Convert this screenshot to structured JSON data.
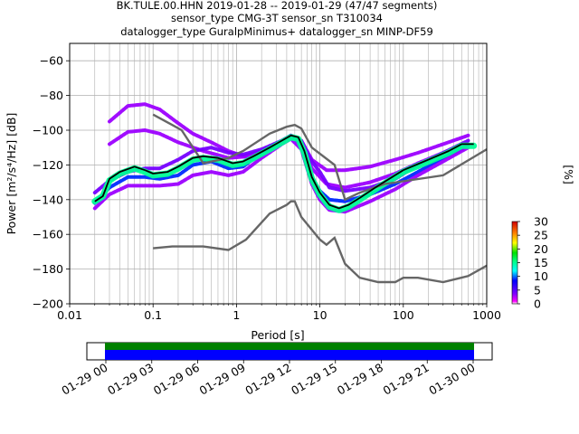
{
  "chart_data": {
    "type": "heatmap",
    "title_lines": [
      "BK.TULE.00.HHN   2019-01-28 -- 2019-01-29  (47/47 segments)",
      "sensor_type CMG-3T sensor_sn T310034",
      "datalogger_type GuralpMinimus+ datalogger_sn MINP-DF59"
    ],
    "xlabel": "Period [s]",
    "ylabel": "Power [m²/s⁴/Hz] [dB]",
    "x_scale": "log",
    "xlim": [
      0.01,
      1000
    ],
    "ylim": [
      -200,
      -50
    ],
    "x_ticks": [
      {
        "value": 0.01,
        "label": "0.01"
      },
      {
        "value": 0.1,
        "label": "0.1"
      },
      {
        "value": 1,
        "label": "1"
      },
      {
        "value": 10,
        "label": "10"
      },
      {
        "value": 100,
        "label": "100"
      },
      {
        "value": 1000,
        "label": "1000"
      }
    ],
    "y_ticks": [
      {
        "value": -60,
        "label": "−60"
      },
      {
        "value": -80,
        "label": "−80"
      },
      {
        "value": -100,
        "label": "−100"
      },
      {
        "value": -120,
        "label": "−120"
      },
      {
        "value": -140,
        "label": "−140"
      },
      {
        "value": -160,
        "label": "−160"
      },
      {
        "value": -180,
        "label": "−180"
      },
      {
        "value": -200,
        "label": "−200"
      }
    ],
    "grid": true,
    "colorbar": {
      "label": "[%]",
      "range": [
        0,
        30
      ],
      "ticks": [
        {
          "value": 0,
          "label": "0"
        },
        {
          "value": 5,
          "label": "5"
        },
        {
          "value": 10,
          "label": "10"
        },
        {
          "value": 15,
          "label": "15"
        },
        {
          "value": 20,
          "label": "20"
        },
        {
          "value": 25,
          "label": "25"
        },
        {
          "value": 30,
          "label": "30"
        }
      ]
    },
    "noise_model_high": [
      [
        0.1,
        -91
      ],
      [
        0.17,
        -97
      ],
      [
        0.22,
        -100
      ],
      [
        0.4,
        -119
      ],
      [
        0.8,
        -116
      ],
      [
        1.2,
        -112
      ],
      [
        2.5,
        -102
      ],
      [
        4,
        -98
      ],
      [
        5,
        -97
      ],
      [
        6,
        -99
      ],
      [
        8,
        -110
      ],
      [
        15,
        -120
      ],
      [
        20,
        -140
      ],
      [
        30,
        -136
      ],
      [
        60,
        -131
      ],
      [
        300,
        -126
      ],
      [
        1000,
        -111
      ]
    ],
    "noise_model_low": [
      [
        0.1,
        -168
      ],
      [
        0.17,
        -167
      ],
      [
        0.4,
        -167
      ],
      [
        0.8,
        -169
      ],
      [
        1.3,
        -163
      ],
      [
        2.5,
        -148
      ],
      [
        4,
        -143
      ],
      [
        4.5,
        -141
      ],
      [
        5,
        -141
      ],
      [
        6,
        -150
      ],
      [
        10,
        -163
      ],
      [
        12,
        -166
      ],
      [
        15,
        -162
      ],
      [
        20,
        -177
      ],
      [
        30,
        -185
      ],
      [
        50,
        -187.5
      ],
      [
        80,
        -187.5
      ],
      [
        100,
        -185
      ],
      [
        150,
        -185
      ],
      [
        300,
        -187.5
      ],
      [
        600,
        -184
      ],
      [
        1000,
        -178
      ]
    ],
    "mean_curve": [
      [
        0.02,
        -141
      ],
      [
        0.025,
        -138
      ],
      [
        0.03,
        -128
      ],
      [
        0.04,
        -124
      ],
      [
        0.06,
        -121
      ],
      [
        0.08,
        -123
      ],
      [
        0.1,
        -125
      ],
      [
        0.15,
        -124
      ],
      [
        0.2,
        -121
      ],
      [
        0.3,
        -116
      ],
      [
        0.4,
        -115
      ],
      [
        0.6,
        -116
      ],
      [
        0.9,
        -119
      ],
      [
        1.2,
        -118
      ],
      [
        1.6,
        -115
      ],
      [
        2.5,
        -110
      ],
      [
        3.5,
        -106
      ],
      [
        4.5,
        -103
      ],
      [
        5.5,
        -104
      ],
      [
        6.5,
        -112
      ],
      [
        8,
        -127
      ],
      [
        10,
        -136
      ],
      [
        13,
        -143
      ],
      [
        17,
        -145
      ],
      [
        22,
        -143
      ],
      [
        30,
        -139
      ],
      [
        50,
        -132
      ],
      [
        100,
        -123
      ],
      [
        200,
        -117
      ],
      [
        350,
        -112
      ],
      [
        500,
        -108
      ],
      [
        700,
        -108
      ]
    ],
    "density_bands": [
      {
        "percent": 3,
        "points": [
          [
            0.03,
            -95
          ],
          [
            0.05,
            -86
          ],
          [
            0.08,
            -85
          ],
          [
            0.12,
            -88
          ],
          [
            0.2,
            -96
          ],
          [
            0.3,
            -102
          ],
          [
            0.5,
            -107
          ],
          [
            0.8,
            -112
          ],
          [
            1.2,
            -115
          ],
          [
            2,
            -112
          ],
          [
            3.5,
            -106
          ],
          [
            4.5,
            -103
          ],
          [
            6,
            -106
          ],
          [
            8,
            -117
          ],
          [
            12,
            -123
          ],
          [
            20,
            -123
          ],
          [
            40,
            -121
          ],
          [
            80,
            -117
          ],
          [
            150,
            -113
          ],
          [
            300,
            -108
          ],
          [
            600,
            -103
          ]
        ]
      },
      {
        "percent": 3,
        "points": [
          [
            0.03,
            -108
          ],
          [
            0.05,
            -101
          ],
          [
            0.08,
            -100
          ],
          [
            0.12,
            -102
          ],
          [
            0.2,
            -107
          ],
          [
            0.4,
            -112
          ],
          [
            0.8,
            -116
          ],
          [
            1.5,
            -115
          ],
          [
            3,
            -108
          ],
          [
            4.5,
            -104
          ],
          [
            6,
            -107
          ],
          [
            8,
            -122
          ],
          [
            12,
            -131
          ],
          [
            20,
            -133
          ],
          [
            40,
            -130
          ],
          [
            80,
            -125
          ],
          [
            150,
            -119
          ],
          [
            300,
            -113
          ],
          [
            600,
            -108
          ]
        ]
      },
      {
        "percent": 4,
        "points": [
          [
            0.02,
            -136
          ],
          [
            0.03,
            -129
          ],
          [
            0.05,
            -124
          ],
          [
            0.08,
            -122
          ],
          [
            0.12,
            -122
          ],
          [
            0.2,
            -117
          ],
          [
            0.3,
            -112
          ],
          [
            0.5,
            -110
          ],
          [
            0.8,
            -113
          ],
          [
            1.2,
            -114
          ],
          [
            2,
            -111
          ],
          [
            3.5,
            -106
          ],
          [
            4.5,
            -103
          ],
          [
            6,
            -106
          ],
          [
            8,
            -118
          ],
          [
            10,
            -124
          ],
          [
            13,
            -133
          ],
          [
            20,
            -135
          ],
          [
            40,
            -133
          ],
          [
            80,
            -128
          ],
          [
            150,
            -120
          ],
          [
            300,
            -113
          ],
          [
            600,
            -106
          ]
        ]
      },
      {
        "percent": 9,
        "points": [
          [
            0.02,
            -142
          ],
          [
            0.03,
            -133
          ],
          [
            0.05,
            -127
          ],
          [
            0.08,
            -127
          ],
          [
            0.12,
            -128
          ],
          [
            0.2,
            -126
          ],
          [
            0.3,
            -120
          ],
          [
            0.5,
            -118
          ],
          [
            0.8,
            -122
          ],
          [
            1.2,
            -121
          ],
          [
            2,
            -113
          ],
          [
            3.5,
            -107
          ],
          [
            4.5,
            -104
          ],
          [
            6,
            -108
          ],
          [
            8,
            -127
          ],
          [
            10,
            -135
          ],
          [
            13,
            -140
          ],
          [
            20,
            -141
          ],
          [
            40,
            -137
          ],
          [
            80,
            -131
          ],
          [
            150,
            -124
          ],
          [
            300,
            -116
          ],
          [
            600,
            -109
          ]
        ]
      },
      {
        "percent": 3,
        "points": [
          [
            0.02,
            -145
          ],
          [
            0.03,
            -137
          ],
          [
            0.05,
            -132
          ],
          [
            0.08,
            -132
          ],
          [
            0.12,
            -132
          ],
          [
            0.2,
            -131
          ],
          [
            0.3,
            -126
          ],
          [
            0.5,
            -124
          ],
          [
            0.8,
            -126
          ],
          [
            1.2,
            -124
          ],
          [
            2,
            -116
          ],
          [
            3.5,
            -108
          ],
          [
            4.5,
            -105
          ],
          [
            6,
            -111
          ],
          [
            8,
            -131
          ],
          [
            10,
            -140
          ],
          [
            13,
            -146
          ],
          [
            20,
            -147
          ],
          [
            40,
            -141
          ],
          [
            80,
            -134
          ],
          [
            150,
            -126
          ],
          [
            300,
            -118
          ],
          [
            600,
            -110
          ]
        ]
      },
      {
        "percent": 15,
        "points": [
          [
            0.02,
            -141
          ],
          [
            0.025,
            -138
          ],
          [
            0.03,
            -129
          ],
          [
            0.04,
            -125
          ],
          [
            0.06,
            -122
          ],
          [
            0.08,
            -124
          ],
          [
            0.1,
            -126
          ],
          [
            0.15,
            -125
          ],
          [
            0.2,
            -122
          ],
          [
            0.3,
            -117
          ],
          [
            0.4,
            -116
          ],
          [
            0.6,
            -117
          ],
          [
            0.9,
            -120
          ],
          [
            1.2,
            -119
          ],
          [
            1.6,
            -116
          ],
          [
            2.5,
            -111
          ],
          [
            3.5,
            -107
          ],
          [
            4.5,
            -104
          ],
          [
            5.5,
            -105
          ],
          [
            6.5,
            -113
          ],
          [
            8,
            -128
          ],
          [
            10,
            -137
          ],
          [
            13,
            -144
          ],
          [
            17,
            -146
          ],
          [
            22,
            -144
          ],
          [
            30,
            -140
          ],
          [
            50,
            -133
          ],
          [
            100,
            -124
          ],
          [
            200,
            -118
          ],
          [
            350,
            -113
          ],
          [
            500,
            -109
          ],
          [
            700,
            -109
          ]
        ]
      }
    ],
    "timeline": {
      "ticks": [
        {
          "label": "01-29 00"
        },
        {
          "label": "01-29 03"
        },
        {
          "label": "01-29 06"
        },
        {
          "label": "01-29 09"
        },
        {
          "label": "01-29 12"
        },
        {
          "label": "01-29 15"
        },
        {
          "label": "01-29 18"
        },
        {
          "label": "01-29 21"
        },
        {
          "label": "01-30 00"
        }
      ],
      "coverage_colors": [
        "#008000",
        "#0000ff"
      ]
    }
  }
}
